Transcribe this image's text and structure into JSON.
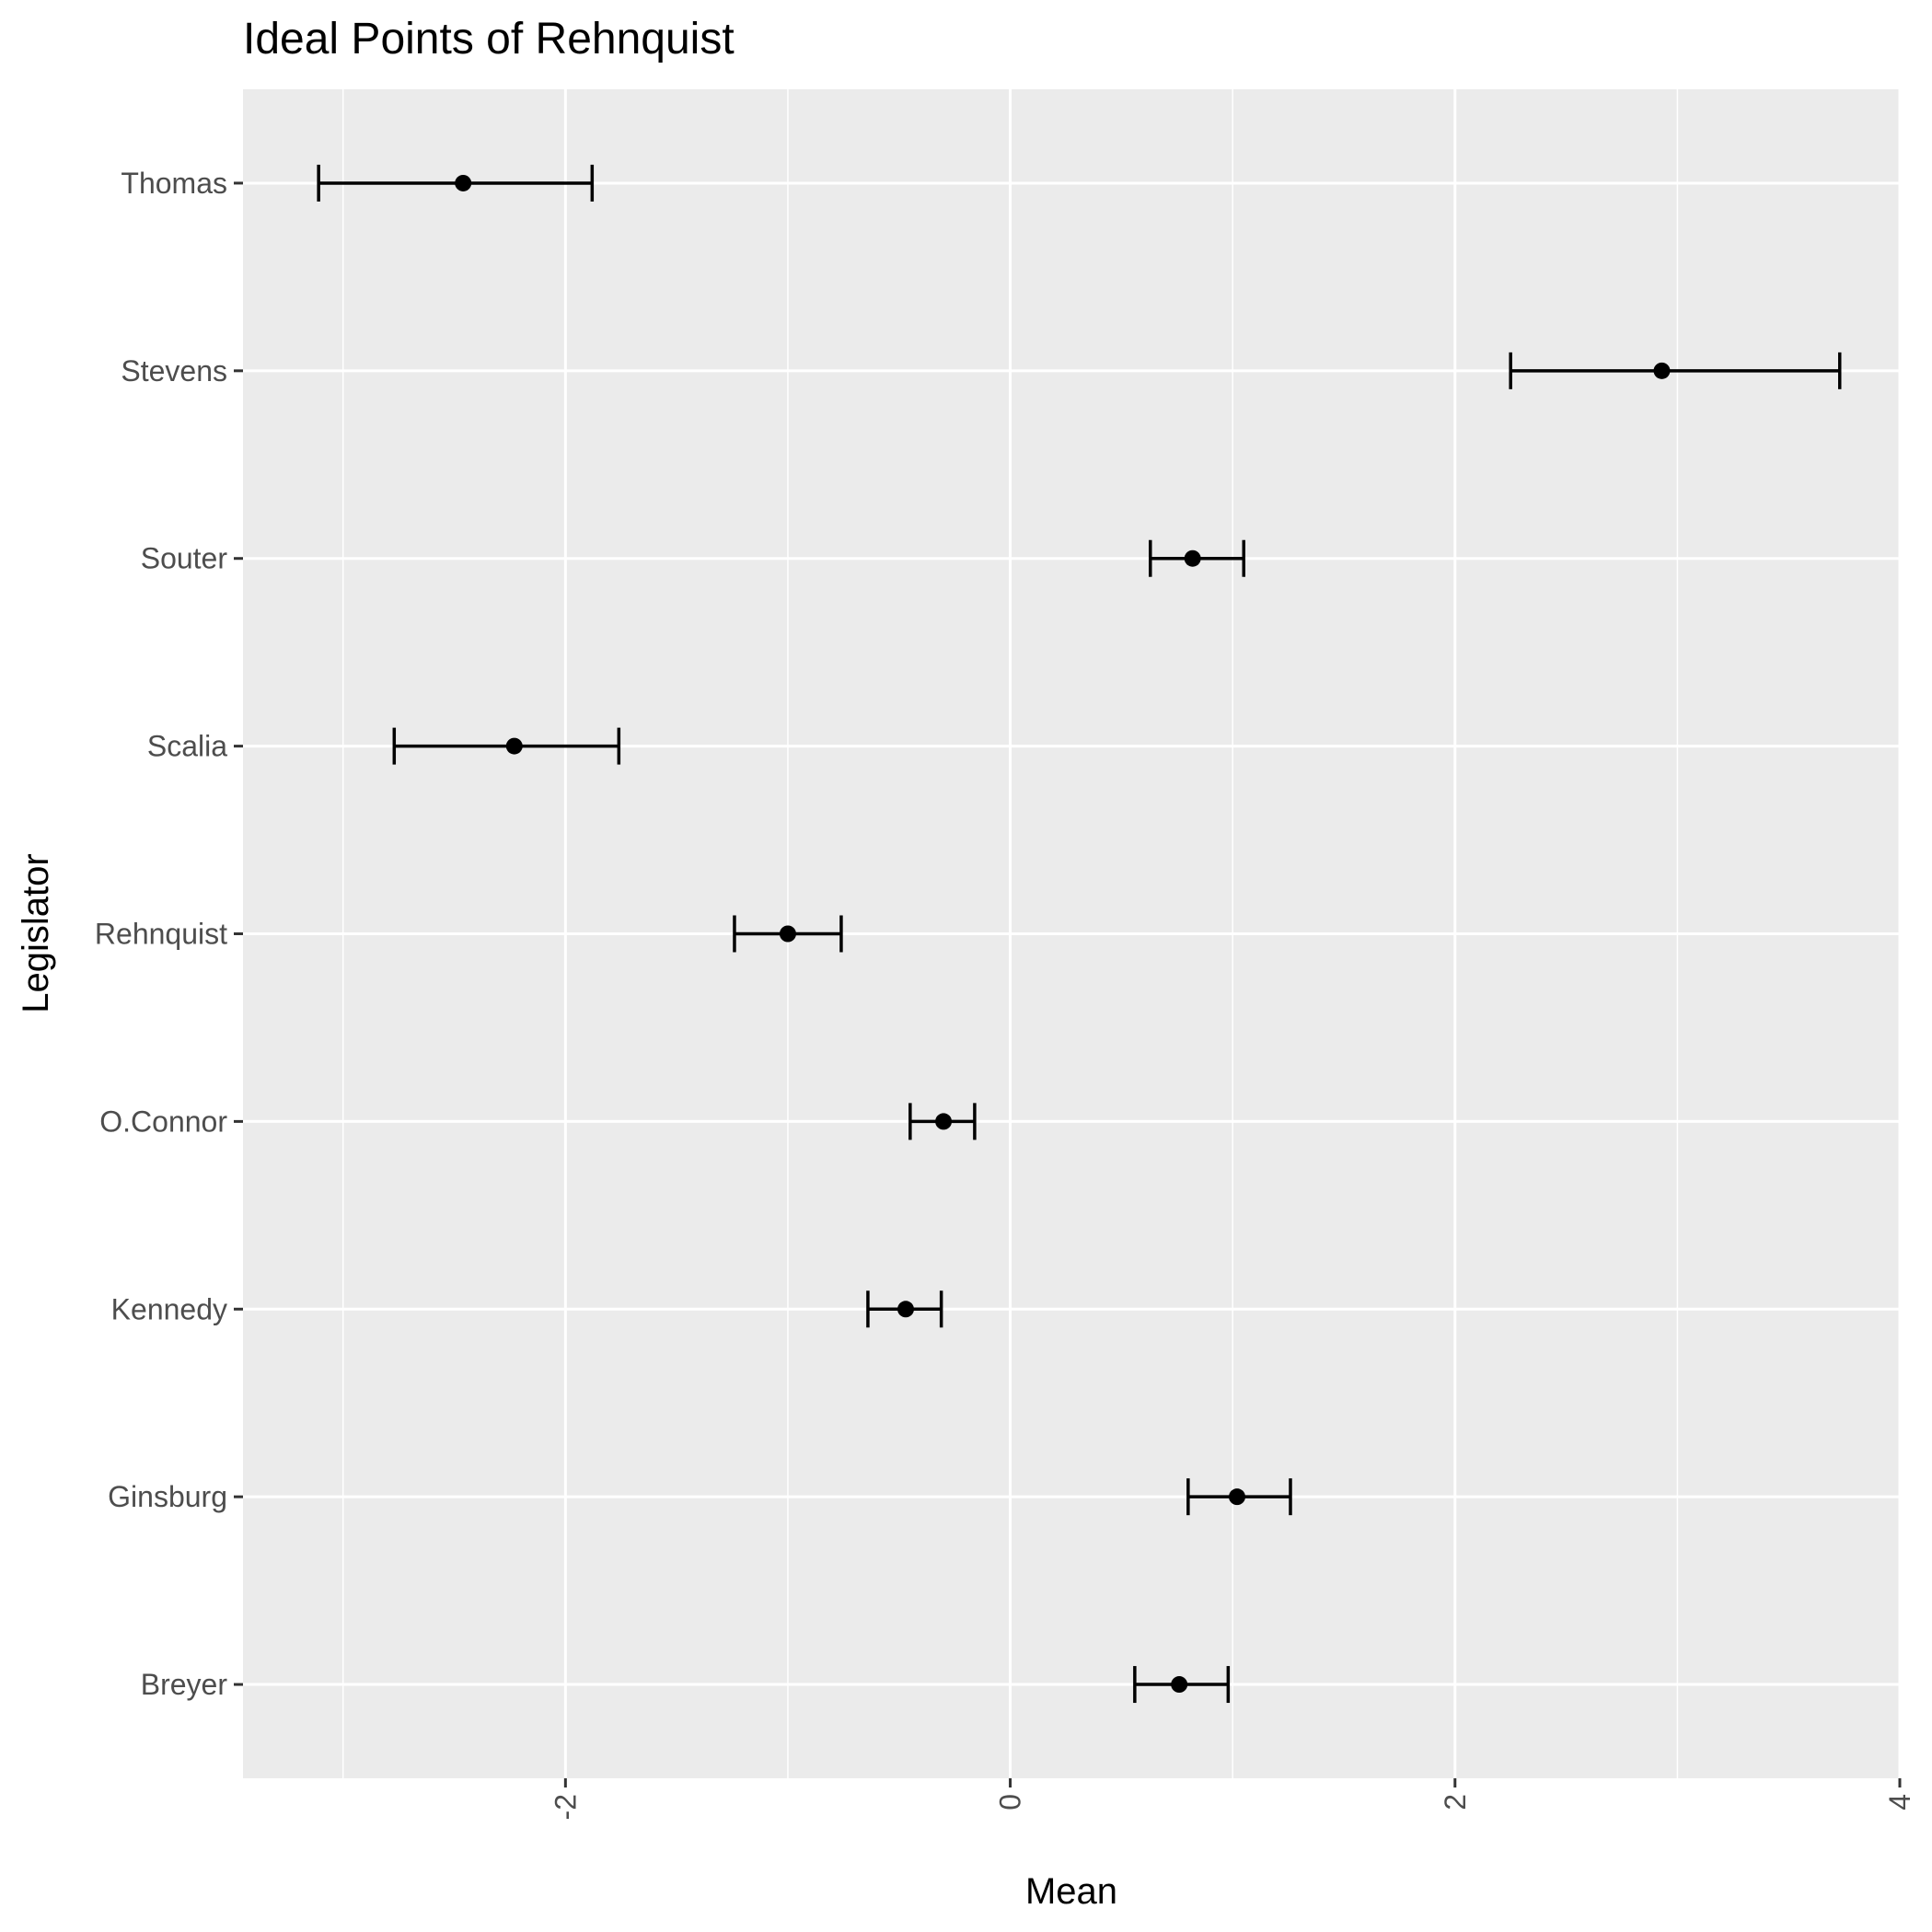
{
  "chart_data": {
    "type": "errorbar",
    "title": "Ideal Points of Rehnquist",
    "xlabel": "Mean",
    "ylabel": "Legislator",
    "xlim": [
      -3.45,
      4.0
    ],
    "x_ticks": [
      -2,
      0,
      2,
      4
    ],
    "x_tick_labels": [
      "-2",
      "0",
      "2",
      "4"
    ],
    "categories": [
      "Breyer",
      "Ginsburg",
      "Kennedy",
      "O.Connor",
      "Rehnquist",
      "Scalia",
      "Souter",
      "Stevens",
      "Thomas"
    ],
    "means": [
      0.76,
      1.02,
      -0.47,
      -0.3,
      -1.0,
      -2.23,
      0.82,
      2.93,
      -2.46
    ],
    "lower": [
      0.56,
      0.8,
      -0.64,
      -0.45,
      -1.24,
      -2.77,
      0.63,
      2.25,
      -3.11
    ],
    "upper": [
      0.98,
      1.26,
      -0.31,
      -0.16,
      -0.76,
      -1.76,
      1.05,
      3.73,
      -1.88
    ],
    "grid": true,
    "panel_color": "#ebebeb",
    "grid_color": "#ffffff",
    "mark_color": "#000000"
  }
}
